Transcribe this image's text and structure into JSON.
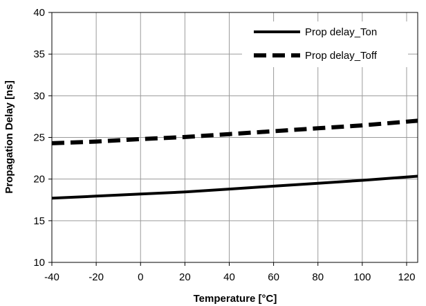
{
  "chart_data": {
    "type": "line",
    "xlabel": "Temperature [°C]",
    "ylabel": "Propagation Delay [ns]",
    "xlim": [
      -40,
      125
    ],
    "ylim": [
      10,
      40
    ],
    "xticks": [
      -40,
      -20,
      0,
      20,
      40,
      60,
      80,
      100,
      120
    ],
    "yticks": [
      10,
      15,
      20,
      25,
      30,
      35,
      40
    ],
    "grid": true,
    "legend_position": "top-right",
    "series": [
      {
        "name": "Prop delay_Ton",
        "line_style": "solid",
        "color": "#000000",
        "x": [
          -40,
          -20,
          0,
          20,
          40,
          60,
          80,
          100,
          125
        ],
        "y": [
          17.7,
          17.95,
          18.2,
          18.45,
          18.8,
          19.15,
          19.5,
          19.85,
          20.35
        ]
      },
      {
        "name": "Prop delay_Toff",
        "line_style": "dashed",
        "color": "#000000",
        "x": [
          -40,
          -20,
          0,
          20,
          40,
          60,
          80,
          100,
          125
        ],
        "y": [
          24.3,
          24.5,
          24.8,
          25.05,
          25.4,
          25.75,
          26.1,
          26.45,
          27.0
        ]
      }
    ]
  }
}
